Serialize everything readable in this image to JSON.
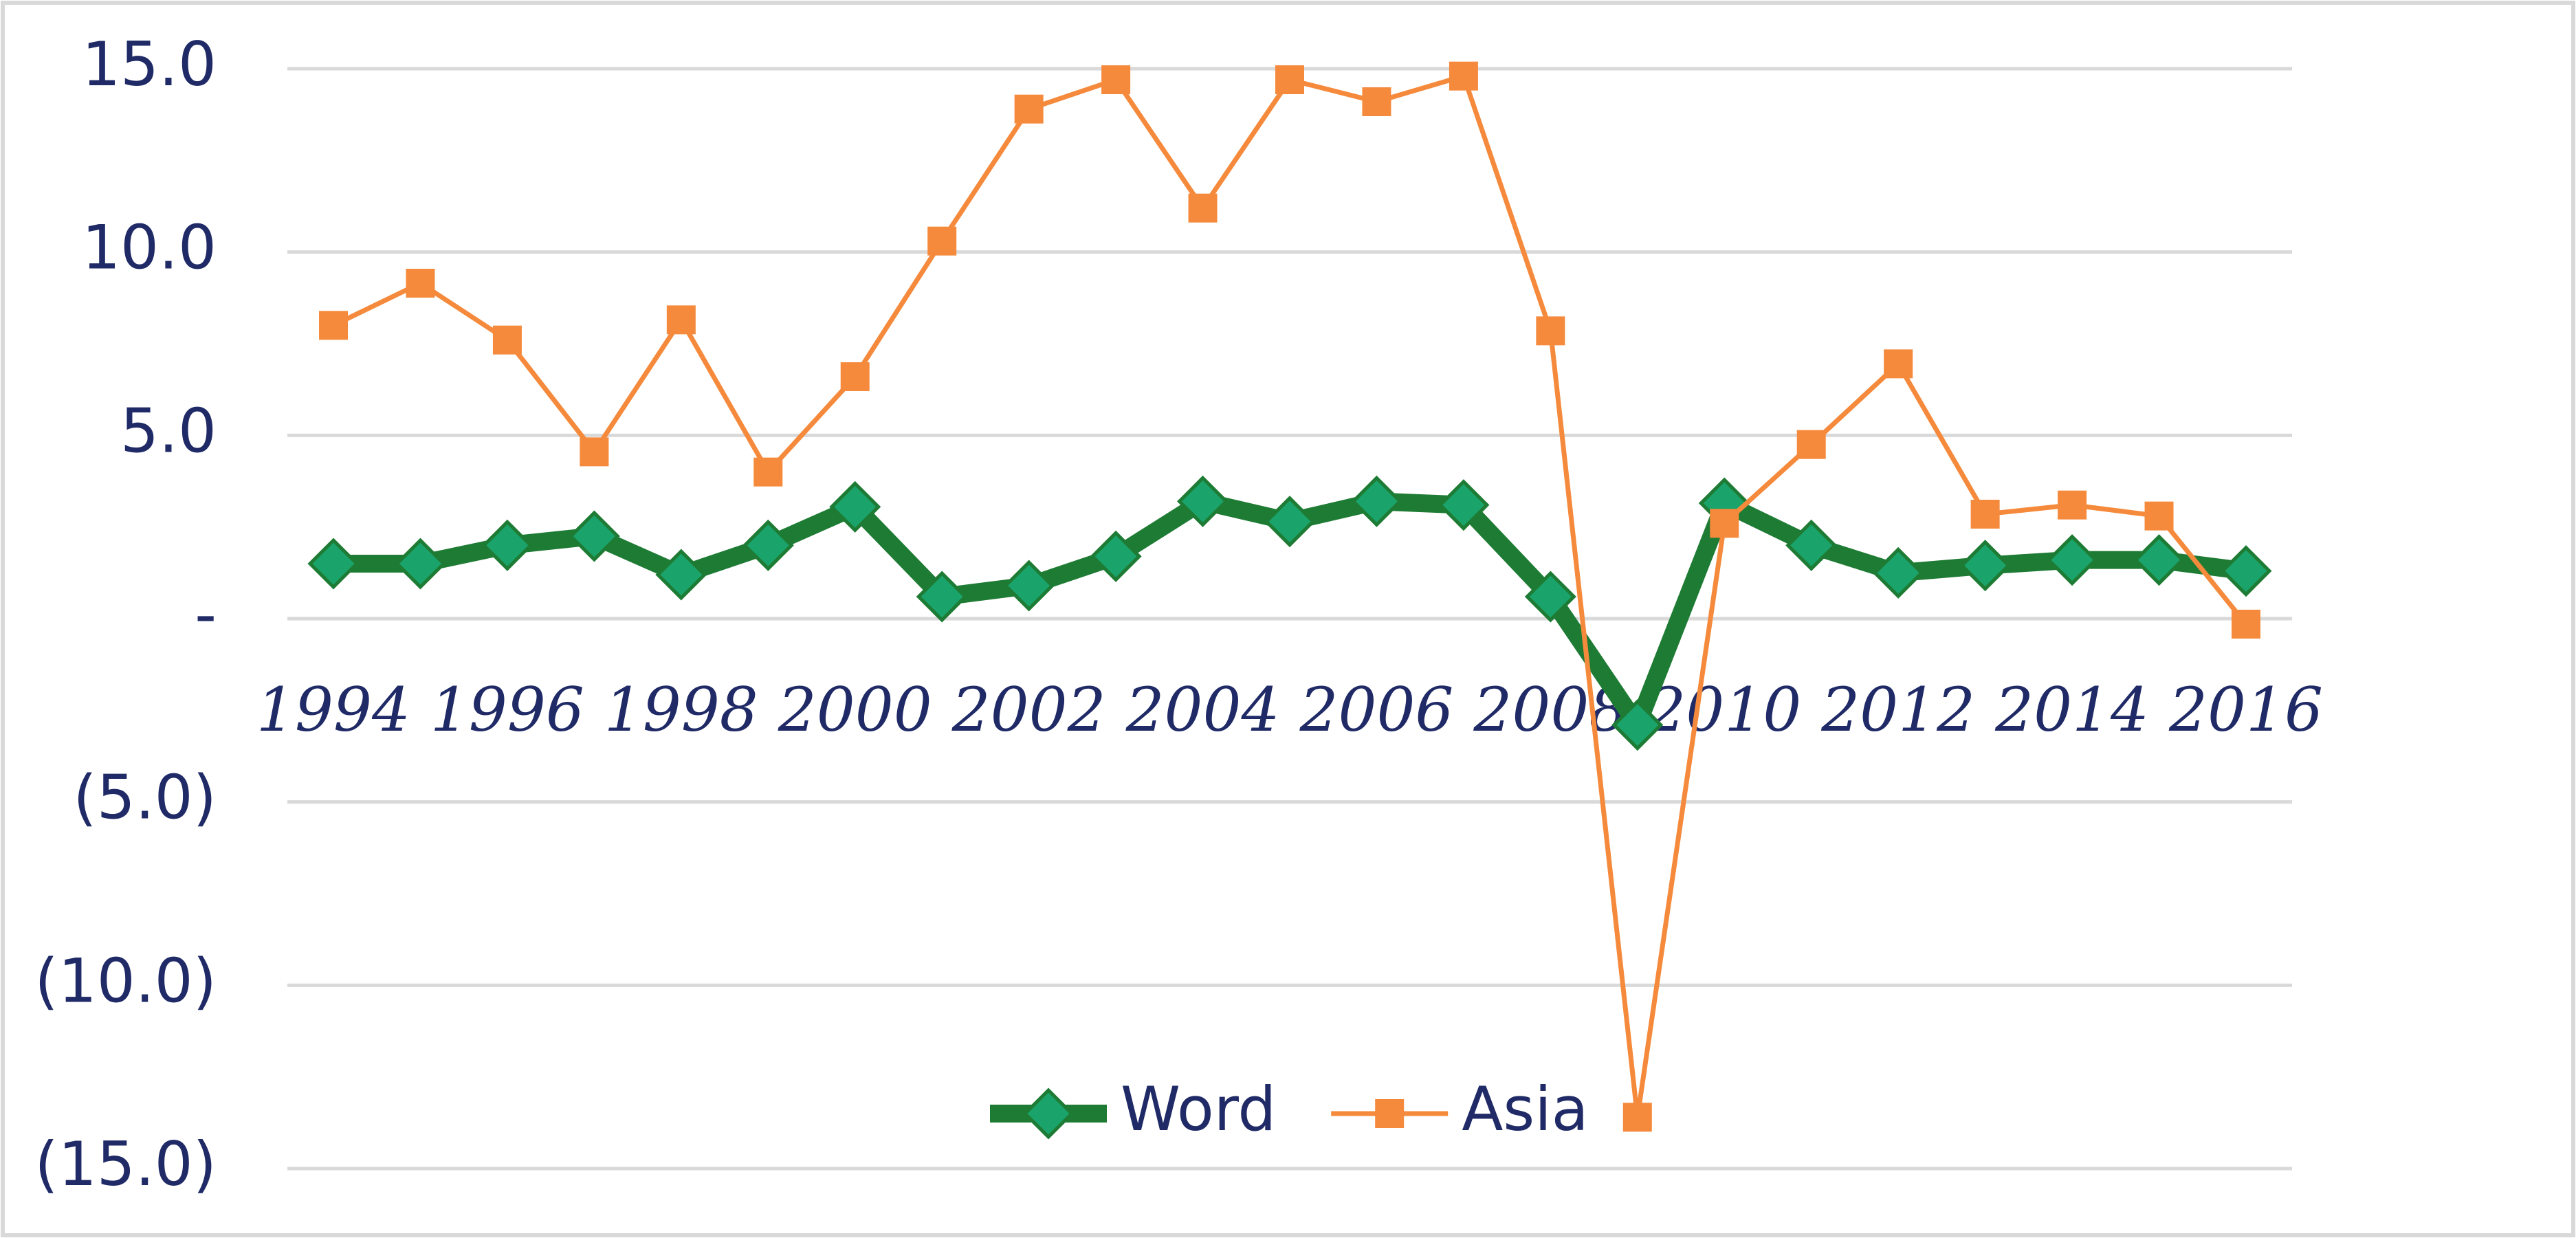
{
  "chart_data": {
    "type": "line",
    "x": [
      1994,
      1995,
      1996,
      1997,
      1998,
      1999,
      2000,
      2001,
      2002,
      2003,
      2004,
      2005,
      2006,
      2007,
      2008,
      2009,
      2010,
      2011,
      2012,
      2013,
      2014,
      2015,
      2016
    ],
    "series": [
      {
        "name": "Word",
        "color": "#1e7b34",
        "marker_color": "#1aa36a",
        "marker": "diamond",
        "values": [
          1.5,
          1.5,
          2.0,
          2.25,
          1.2,
          2.0,
          3.05,
          0.6,
          0.9,
          1.7,
          3.2,
          2.65,
          3.2,
          3.1,
          0.6,
          -2.9,
          3.15,
          2.0,
          1.25,
          1.45,
          1.6,
          1.6,
          1.3
        ]
      },
      {
        "name": "Asia",
        "color": "#f58a3c",
        "marker_color": "#f58a3c",
        "marker": "square",
        "values": [
          8.0,
          9.15,
          7.6,
          4.55,
          8.15,
          4.0,
          6.6,
          10.3,
          13.9,
          14.7,
          11.2,
          14.7,
          14.1,
          14.8,
          7.85,
          -13.6,
          2.6,
          4.75,
          6.95,
          2.85,
          3.1,
          2.8,
          -0.15
        ]
      }
    ],
    "xlim": [
      1993.47,
      2016.53
    ],
    "xticks": [
      1994,
      1996,
      1998,
      2000,
      2002,
      2004,
      2006,
      2008,
      2010,
      2012,
      2014,
      2016
    ],
    "ylim": [
      -15,
      15
    ],
    "yticks": [
      {
        "value": 15,
        "label": "15.0"
      },
      {
        "value": 10,
        "label": "10.0"
      },
      {
        "value": 5,
        "label": "5.0"
      },
      {
        "value": 0,
        "label": "-"
      },
      {
        "value": -5,
        "label": "(5.0)"
      },
      {
        "value": -10,
        "label": "(10.0)"
      },
      {
        "value": -15,
        "label": "(15.0)"
      }
    ],
    "grid": true,
    "legend": "bottom"
  }
}
